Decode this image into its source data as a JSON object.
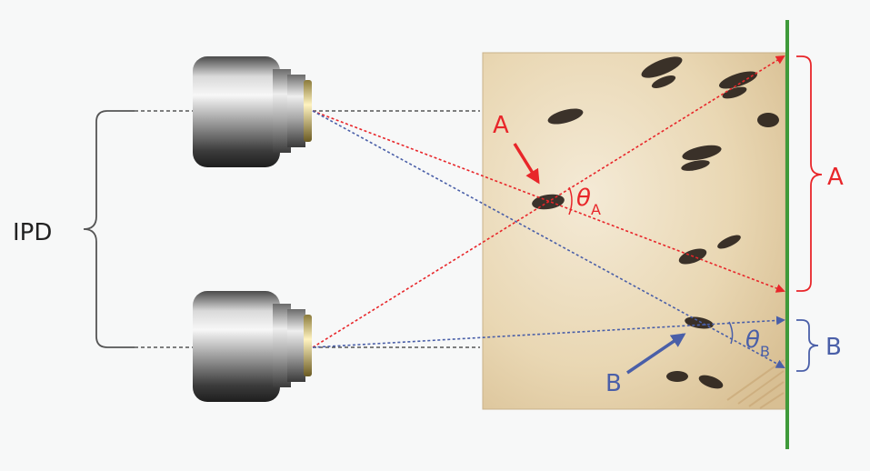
{
  "labels": {
    "ipd": "IPD",
    "point_a": "A",
    "point_b": "B",
    "range_a": "A",
    "range_b": "B",
    "theta": "θ",
    "theta_a_sub": "A",
    "theta_b_sub": "B"
  },
  "colors": {
    "ray_a": "#e8262a",
    "ray_b": "#4a5fa8",
    "screen": "#3f9a3a",
    "bracket_ipd": "#555555",
    "text_dark": "#222222"
  },
  "icons": {
    "camera": "camera-icon"
  }
}
